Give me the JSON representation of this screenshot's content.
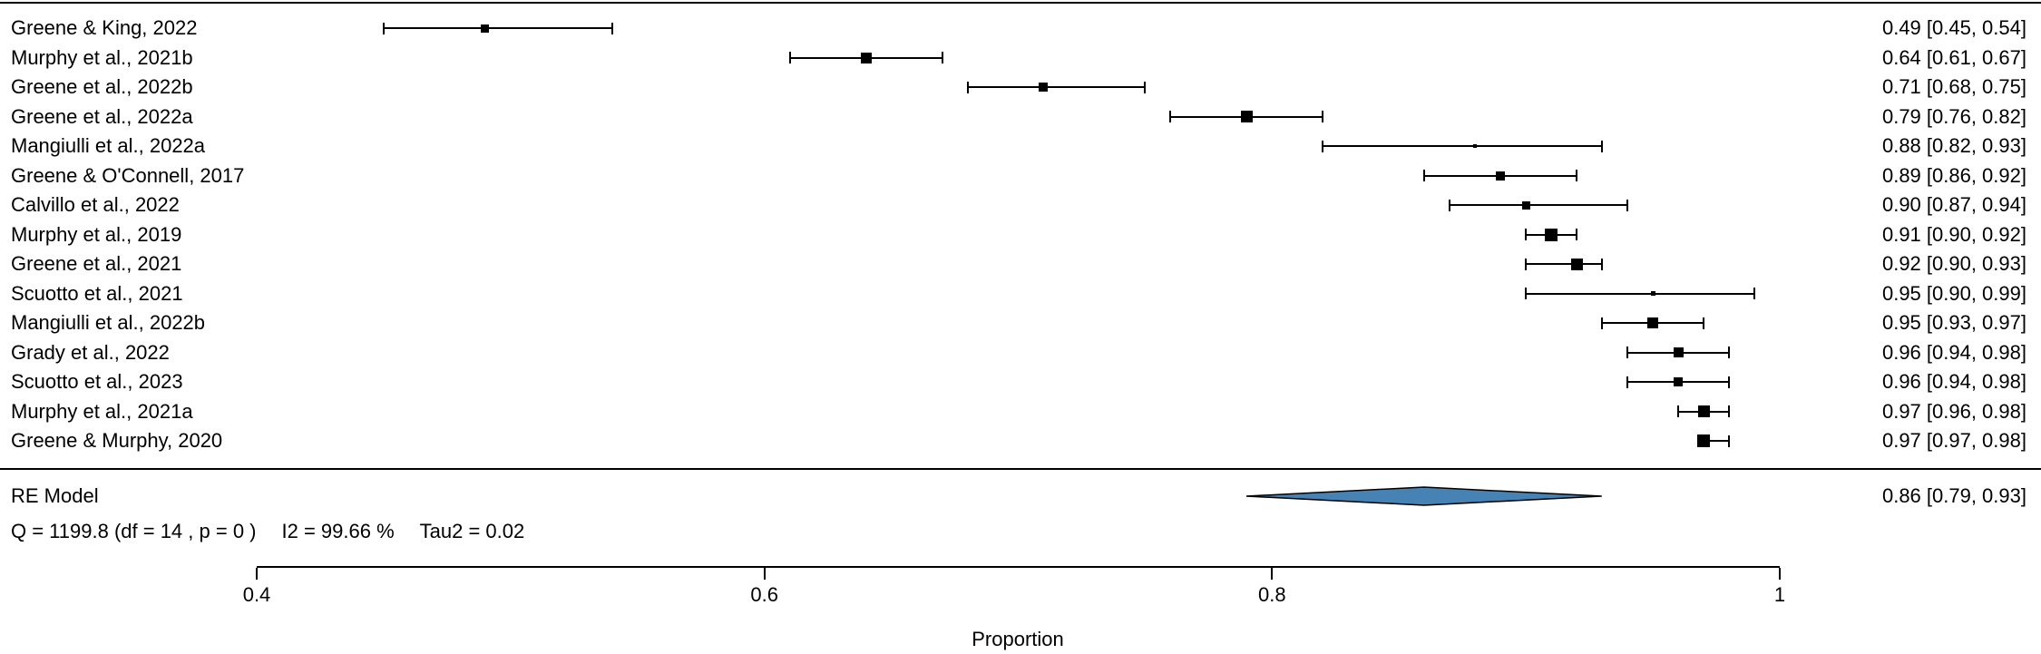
{
  "chart_data": {
    "type": "forest",
    "title": "",
    "xlabel": "Proportion",
    "xlim": [
      0.4,
      1.0
    ],
    "grid": false,
    "x_ticks": [
      {
        "value": 0.4,
        "label": "0.4"
      },
      {
        "value": 0.6,
        "label": "0.6"
      },
      {
        "value": 0.8,
        "label": "0.8"
      },
      {
        "value": 1,
        "label": "1"
      }
    ],
    "studies": [
      {
        "label": "Greene & King, 2022",
        "est": 0.49,
        "lo": 0.45,
        "hi": 0.54,
        "annotation": "0.49 [0.45, 0.54]",
        "marker_size": 9
      },
      {
        "label": "Murphy et al., 2021b",
        "est": 0.64,
        "lo": 0.61,
        "hi": 0.67,
        "annotation": "0.64 [0.61, 0.67]",
        "marker_size": 12
      },
      {
        "label": "Greene et al., 2022b",
        "est": 0.71,
        "lo": 0.68,
        "hi": 0.75,
        "annotation": "0.71 [0.68, 0.75]",
        "marker_size": 10
      },
      {
        "label": "Greene et al., 2022a",
        "est": 0.79,
        "lo": 0.76,
        "hi": 0.82,
        "annotation": "0.79 [0.76, 0.82]",
        "marker_size": 13
      },
      {
        "label": "Mangiulli et al., 2022a",
        "est": 0.88,
        "lo": 0.82,
        "hi": 0.93,
        "annotation": "0.88 [0.82, 0.93]",
        "marker_size": 4
      },
      {
        "label": "Greene & O'Connell, 2017",
        "est": 0.89,
        "lo": 0.86,
        "hi": 0.92,
        "annotation": "0.89 [0.86, 0.92]",
        "marker_size": 10
      },
      {
        "label": "Calvillo et al., 2022",
        "est": 0.9,
        "lo": 0.87,
        "hi": 0.94,
        "annotation": "0.90 [0.87, 0.94]",
        "marker_size": 9
      },
      {
        "label": "Murphy et al., 2019",
        "est": 0.91,
        "lo": 0.9,
        "hi": 0.92,
        "annotation": "0.91 [0.90, 0.92]",
        "marker_size": 14
      },
      {
        "label": "Greene et al., 2021",
        "est": 0.92,
        "lo": 0.9,
        "hi": 0.93,
        "annotation": "0.92 [0.90, 0.93]",
        "marker_size": 13
      },
      {
        "label": "Scuotto et al., 2021",
        "est": 0.95,
        "lo": 0.9,
        "hi": 0.99,
        "annotation": "0.95 [0.90, 0.99]",
        "marker_size": 5
      },
      {
        "label": "Mangiulli et al., 2022b",
        "est": 0.95,
        "lo": 0.93,
        "hi": 0.97,
        "annotation": "0.95 [0.93, 0.97]",
        "marker_size": 12
      },
      {
        "label": "Grady et al., 2022",
        "est": 0.96,
        "lo": 0.94,
        "hi": 0.98,
        "annotation": "0.96 [0.94, 0.98]",
        "marker_size": 11
      },
      {
        "label": "Scuotto et al., 2023",
        "est": 0.96,
        "lo": 0.94,
        "hi": 0.98,
        "annotation": "0.96 [0.94, 0.98]",
        "marker_size": 10
      },
      {
        "label": "Murphy et al., 2021a",
        "est": 0.97,
        "lo": 0.96,
        "hi": 0.98,
        "annotation": "0.97 [0.96, 0.98]",
        "marker_size": 13
      },
      {
        "label": "Greene & Murphy, 2020",
        "est": 0.97,
        "lo": 0.97,
        "hi": 0.98,
        "annotation": "0.97 [0.97, 0.98]",
        "marker_size": 14
      }
    ],
    "summary": {
      "label": "RE Model",
      "est": 0.86,
      "lo": 0.79,
      "hi": 0.93,
      "annotation": "0.86 [0.79, 0.93]",
      "diamond_color": "#4682B4"
    },
    "heterogeneity": {
      "q": "Q = 1199.8 (df = 14 , p = 0 )",
      "i2": "I2 = 99.66 %",
      "tau2": "Tau2 = 0.02"
    }
  },
  "colors": {
    "background": "#ffffff",
    "foreground": "#000000",
    "diamond": "#4682B4"
  }
}
